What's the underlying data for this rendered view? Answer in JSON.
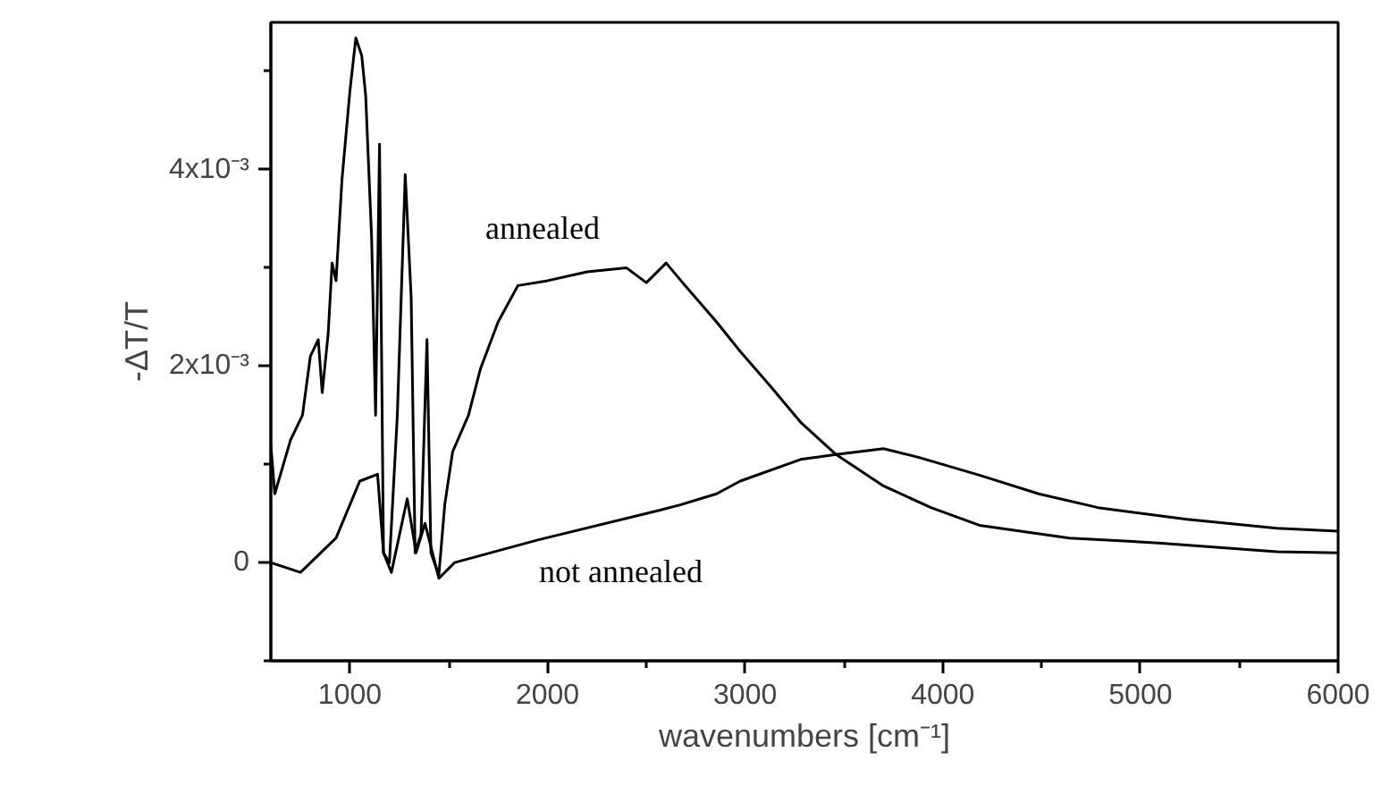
{
  "chart_data": {
    "type": "line",
    "xlabel": "wavenumbers [cm⁻¹]",
    "ylabel": "-ΔT/T",
    "xlim": [
      600,
      6000
    ],
    "ylim": [
      -0.001,
      0.0055
    ],
    "xticks": [
      1000,
      {
        "value": 1500,
        "label": null
      },
      2000,
      {
        "value": 2500,
        "label": null
      },
      3000,
      {
        "value": 3500,
        "label": null
      },
      4000,
      {
        "value": 4500,
        "label": null
      },
      5000,
      {
        "value": 5500,
        "label": null
      },
      6000
    ],
    "yticks": [
      {
        "value": -0.001,
        "label": null
      },
      0,
      {
        "value": 0.001,
        "label": null
      },
      {
        "value": 0.002,
        "label": "2x10⁻³"
      },
      {
        "value": 0.003,
        "label": null
      },
      {
        "value": 0.004,
        "label": "4x10⁻³"
      },
      {
        "value": 0.005,
        "label": null
      }
    ],
    "grid": false,
    "line_style": "solid",
    "series": [
      {
        "name": "annealed",
        "color": "#000000",
        "x": [
          600,
          620,
          700,
          760,
          800,
          840,
          860,
          890,
          910,
          930,
          960,
          1000,
          1030,
          1060,
          1080,
          1110,
          1130,
          1150,
          1170,
          1200,
          1240,
          1280,
          1310,
          1330,
          1360,
          1390,
          1410,
          1450,
          1480,
          1520,
          1600,
          1660,
          1750,
          1850,
          2000,
          2200,
          2400,
          2500,
          2600,
          2675,
          2855,
          2975,
          3130,
          3280,
          3460,
          3700,
          3940,
          4185,
          4640,
          5090,
          5690,
          6000
        ],
        "values": [
          0.0012,
          0.0007,
          0.00125,
          0.0015,
          0.0021,
          0.00227,
          0.00173,
          0.00233,
          0.00305,
          0.00287,
          0.0039,
          0.0048,
          0.00534,
          0.00516,
          0.00475,
          0.0033,
          0.0015,
          0.00426,
          0.0001,
          0,
          0.0015,
          0.00395,
          0.0027,
          0.0001,
          0.00029,
          0.00227,
          0.0001,
          -0.00013,
          0.00059,
          0.00113,
          0.0015,
          0.00197,
          0.00245,
          0.00282,
          0.00287,
          0.00296,
          0.003,
          0.00285,
          0.00305,
          0.00287,
          0.00245,
          0.00215,
          0.00179,
          0.00143,
          0.0011,
          0.00078,
          0.00056,
          0.00038,
          0.00025,
          0.0002,
          0.00011,
          0.0001
        ]
      },
      {
        "name": "not annealed",
        "color": "#000000",
        "x": [
          600,
          750,
          930,
          1050,
          1140,
          1170,
          1210,
          1290,
          1335,
          1380,
          1450,
          1530,
          1950,
          2560,
          2675,
          2855,
          2975,
          3280,
          3460,
          3700,
          3880,
          4185,
          4485,
          4785,
          5235,
          5690,
          6000
        ],
        "values": [
          0,
          -0.0001,
          0.00025,
          0.00083,
          0.0009,
          0.0001,
          -0.0001,
          0.00065,
          0.0001,
          0.0004,
          -0.00016,
          0,
          0.00023,
          0.00053,
          0.00059,
          0.0007,
          0.00083,
          0.00105,
          0.0011,
          0.00116,
          0.00107,
          0.00089,
          0.0007,
          0.00056,
          0.00044,
          0.00035,
          0.00032
        ]
      }
    ]
  }
}
